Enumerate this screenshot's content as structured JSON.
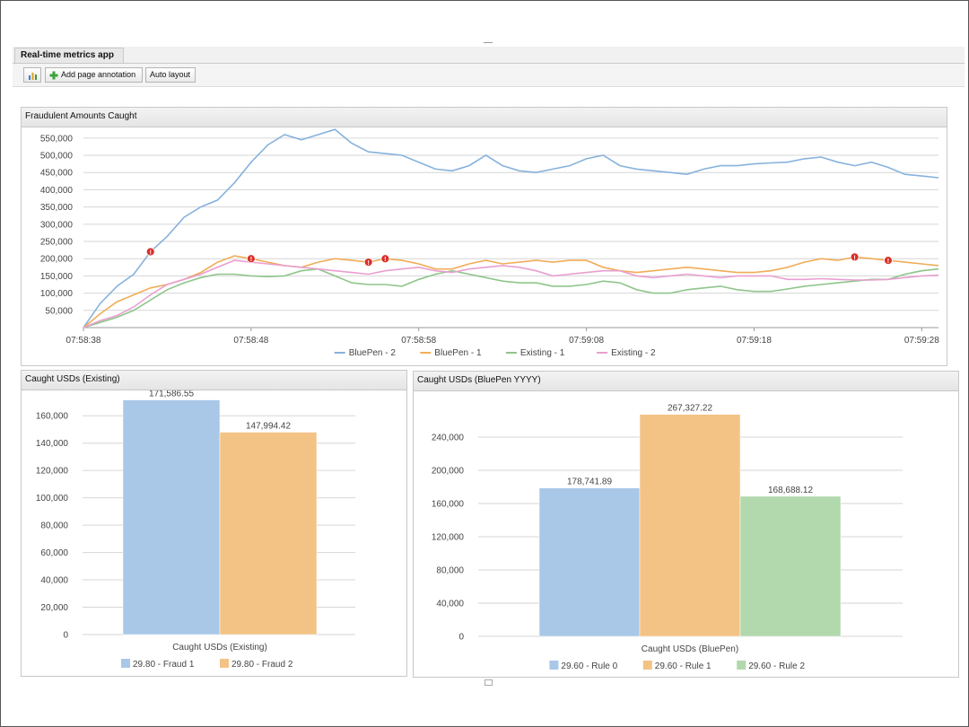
{
  "app": {
    "tab_label": "Real-time metrics app"
  },
  "toolbar": {
    "chart_icon": "bar-chart-icon",
    "add_icon": "plus-icon",
    "add_annotation_label": "Add page annotation",
    "auto_layout_label": "Auto layout"
  },
  "colors": {
    "blue": "#87b2dd",
    "orange": "#f0ad58",
    "green": "#8fc58a",
    "pink": "#e99fd0",
    "bar_blue": "#a9c8e8",
    "bar_orange": "#f3c386",
    "bar_green": "#b2d8ad",
    "alert_red": "#d9302a"
  },
  "panels": {
    "line": {
      "title": "Fraudulent Amounts Caught"
    },
    "bar1": {
      "title": "Caught USDs (Existing)"
    },
    "bar2": {
      "title": "Caught USDs (BluePen YYYY)"
    }
  },
  "chart_data": [
    {
      "type": "line",
      "title": "Fraudulent Amounts Caught",
      "x_start": "07:58:38",
      "x_end": "07:59:29",
      "x_step_seconds": 1,
      "x_tick_labels": [
        "07:58:38",
        "07:58:48",
        "07:58:58",
        "07:59:08",
        "07:59:18",
        "07:59:28"
      ],
      "y_ticks": [
        50000,
        100000,
        150000,
        200000,
        250000,
        300000,
        350000,
        400000,
        450000,
        500000,
        550000
      ],
      "ylim": [
        0,
        560000
      ],
      "grid": true,
      "legend_position": "bottom",
      "series": [
        {
          "name": "BluePen - 2",
          "color": "#87b2dd",
          "values": [
            0,
            70000,
            120000,
            155000,
            220000,
            265000,
            320000,
            350000,
            370000,
            420000,
            480000,
            530000,
            560000,
            545000,
            560000,
            575000,
            535000,
            510000,
            505000,
            500000,
            480000,
            460000,
            455000,
            470000,
            500000,
            470000,
            455000,
            450000,
            460000,
            470000,
            490000,
            500000,
            470000,
            460000,
            455000,
            450000,
            445000,
            460000,
            470000,
            470000,
            475000,
            478000,
            480000,
            490000,
            495000,
            480000,
            470000,
            480000,
            465000,
            445000,
            440000,
            435000
          ]
        },
        {
          "name": "BluePen - 1",
          "color": "#f0ad58",
          "values": [
            0,
            40000,
            75000,
            95000,
            115000,
            125000,
            140000,
            160000,
            190000,
            208000,
            200000,
            190000,
            180000,
            175000,
            190000,
            200000,
            195000,
            190000,
            200000,
            195000,
            185000,
            170000,
            170000,
            185000,
            195000,
            185000,
            190000,
            195000,
            190000,
            195000,
            195000,
            175000,
            165000,
            160000,
            165000,
            170000,
            175000,
            170000,
            165000,
            160000,
            160000,
            165000,
            175000,
            190000,
            200000,
            195000,
            205000,
            200000,
            195000,
            190000,
            185000,
            180000
          ]
        },
        {
          "name": "Existing - 1",
          "color": "#8fc58a",
          "values": [
            0,
            15000,
            30000,
            50000,
            80000,
            110000,
            130000,
            145000,
            155000,
            155000,
            150000,
            148000,
            150000,
            165000,
            170000,
            150000,
            130000,
            125000,
            125000,
            120000,
            140000,
            155000,
            165000,
            155000,
            145000,
            135000,
            130000,
            130000,
            120000,
            120000,
            125000,
            135000,
            130000,
            110000,
            100000,
            100000,
            110000,
            115000,
            120000,
            110000,
            105000,
            105000,
            112000,
            120000,
            125000,
            130000,
            135000,
            140000,
            140000,
            155000,
            165000,
            170000
          ]
        },
        {
          "name": "Existing - 2",
          "color": "#e99fd0",
          "values": [
            0,
            20000,
            35000,
            60000,
            95000,
            125000,
            140000,
            155000,
            175000,
            195000,
            190000,
            185000,
            180000,
            175000,
            170000,
            165000,
            160000,
            155000,
            165000,
            170000,
            175000,
            165000,
            160000,
            170000,
            175000,
            180000,
            175000,
            165000,
            150000,
            155000,
            160000,
            165000,
            165000,
            150000,
            145000,
            150000,
            155000,
            150000,
            145000,
            150000,
            150000,
            150000,
            140000,
            140000,
            142000,
            140000,
            138000,
            138000,
            140000,
            145000,
            150000,
            152000
          ]
        }
      ],
      "annotations": [
        {
          "x_index": 4,
          "series": "BluePen - 2"
        },
        {
          "x_index": 10,
          "series": "BluePen - 1"
        },
        {
          "x_index": 17,
          "series": "BluePen - 1"
        },
        {
          "x_index": 18,
          "series": "BluePen - 1"
        },
        {
          "x_index": 46,
          "series": "BluePen - 1"
        },
        {
          "x_index": 48,
          "series": "BluePen - 1"
        }
      ]
    },
    {
      "type": "bar",
      "title": "Caught USDs (Existing)",
      "xlabel": "Caught USDs (Existing)",
      "ylim": [
        0,
        170000
      ],
      "y_ticks": [
        0,
        20000,
        40000,
        60000,
        80000,
        100000,
        120000,
        140000,
        160000
      ],
      "legend_position": "bottom",
      "series": [
        {
          "name": "29.80 - Fraud 1",
          "value": 171586.55,
          "label": "171,586.55",
          "color": "#a9c8e8"
        },
        {
          "name": "29.80 - Fraud 2",
          "value": 147994.42,
          "label": "147,994.42",
          "color": "#f3c386"
        }
      ]
    },
    {
      "type": "bar",
      "title": "Caught USDs (BluePen YYYY)",
      "xlabel": "Caught USDs (BluePen)",
      "ylim": [
        0,
        280000
      ],
      "y_ticks": [
        0,
        40000,
        80000,
        120000,
        160000,
        200000,
        240000
      ],
      "legend_position": "bottom",
      "series": [
        {
          "name": "29.60 - Rule 0",
          "value": 178741.89,
          "label": "178,741.89",
          "color": "#a9c8e8"
        },
        {
          "name": "29.60 - Rule 1",
          "value": 267327.22,
          "label": "267,327.22",
          "color": "#f3c386"
        },
        {
          "name": "29.60 - Rule 2",
          "value": 168688.12,
          "label": "168,688.12",
          "color": "#b2d8ad"
        }
      ]
    }
  ]
}
